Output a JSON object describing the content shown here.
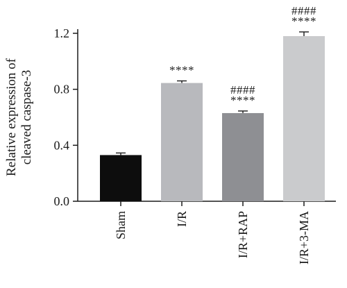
{
  "chart_data": {
    "type": "bar",
    "ylabel_lines": [
      "Relative expression of",
      "cleaved caspase-3"
    ],
    "categories": [
      "Sham",
      "I/R",
      "I/R+RAP",
      "I/R+3-MA"
    ],
    "values": [
      0.33,
      0.845,
      0.63,
      1.18
    ],
    "errors": [
      0.015,
      0.015,
      0.015,
      0.03
    ],
    "colors": [
      "#0d0d0d",
      "#b8b9bd",
      "#8e8f93",
      "#cacbcd"
    ],
    "annotations": [
      [],
      [
        "****"
      ],
      [
        "####",
        "****"
      ],
      [
        "####",
        "****"
      ]
    ],
    "ylim": [
      0.0,
      1.2
    ],
    "yticks": [
      "0.0",
      "0.4",
      "0.8",
      "1.2"
    ],
    "grid": false,
    "legend": "none"
  }
}
